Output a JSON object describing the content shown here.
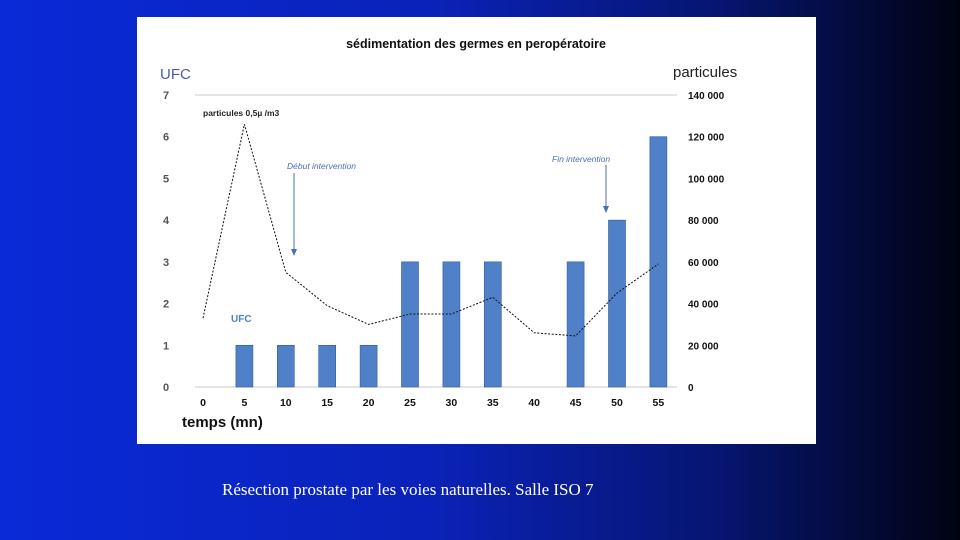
{
  "caption": "Résection prostate par les voies naturelles. Salle ISO 7",
  "colors": {
    "bar": "#4f80c8",
    "bar_edge": "#2f5a9c",
    "line": "#111111",
    "arrow": "#4a6fb0",
    "left_unit": "#4a5aa8",
    "right_unit": "#222222"
  },
  "chart_data": {
    "type": "bar",
    "title": "sédimentation des germes en peropératoire",
    "xlabel": "temps (mn)",
    "ylabel_left": "UFC",
    "ylabel_right": "particules",
    "x": [
      0,
      5,
      10,
      15,
      20,
      25,
      30,
      35,
      40,
      45,
      50,
      55
    ],
    "x_tick_labels": [
      "0",
      "5",
      "10",
      "15",
      "20",
      "25",
      "30",
      "35",
      "40",
      "45",
      "50",
      "55"
    ],
    "ylim_left": [
      0,
      7
    ],
    "y_ticks_left": [
      "0",
      "1",
      "2",
      "3",
      "4",
      "5",
      "6",
      "7"
    ],
    "ylim_right": [
      0,
      140000
    ],
    "y_ticks_right": [
      "0",
      "20 000",
      "40 000",
      "60 000",
      "80 000",
      "100 000",
      "120 000",
      "140 000"
    ],
    "grid": false,
    "series": [
      {
        "name": "UFC",
        "type": "bar",
        "axis": "left",
        "x": [
          5,
          10,
          15,
          20,
          25,
          30,
          35,
          45,
          50,
          55
        ],
        "values": [
          1,
          1,
          1,
          1,
          3,
          3,
          3,
          3,
          4,
          6
        ]
      },
      {
        "name": "particules 0,5µ /m3",
        "type": "line",
        "axis": "right",
        "x": [
          0,
          5,
          10,
          15,
          20,
          25,
          30,
          35,
          40,
          45,
          50,
          55
        ],
        "values": [
          33000,
          126000,
          55000,
          39000,
          30000,
          35000,
          35000,
          43000,
          26000,
          24500,
          45000,
          59000
        ]
      }
    ],
    "annotations": [
      {
        "text": "Début intervention",
        "x": 10
      },
      {
        "text": "Fin intervention",
        "x": 50
      }
    ]
  }
}
